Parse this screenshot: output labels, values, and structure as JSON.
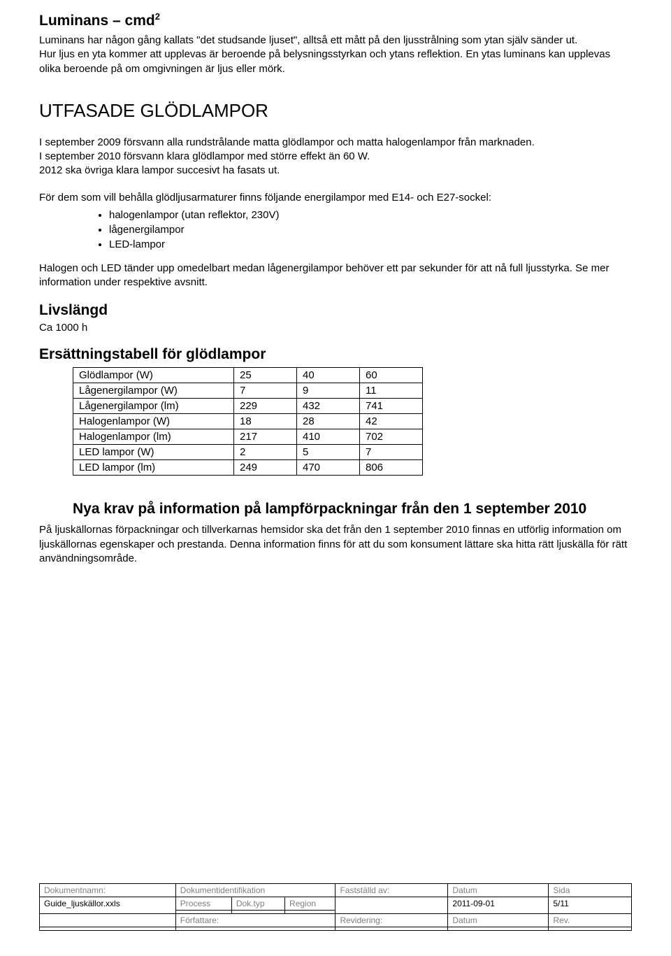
{
  "section_luminans": {
    "title_html": "Luminans – cmd",
    "title_sup": "2",
    "para": "Luminans har någon gång kallats \"det studsande ljuset\", alltså ett mått på den ljusstrålning som ytan själv sänder ut.\nHur ljus en yta kommer att upplevas är beroende på belysningsstyrkan och ytans reflektion. En ytas luminans kan upplevas olika beroende på om omgivningen är ljus eller mörk."
  },
  "section_utfasade": {
    "title": "UTFASADE GLÖDLAMPOR",
    "para1": "I september 2009 försvann alla rundstrålande matta glödlampor och matta halogenlampor från marknaden.\nI september 2010 försvann klara glödlampor med större effekt än 60 W.\n2012 ska övriga klara lampor succesivt ha fasats ut.",
    "para2_lead": "För dem som vill behålla glödljusarmaturer finns följande energilampor med E14- och E27-sockel:",
    "bullets": [
      "halogenlampor (utan reflektor, 230V)",
      "lågenergilampor",
      "LED-lampor"
    ],
    "para3": "Halogen och LED tänder upp omedelbart medan lågenergilampor behöver ett par sekunder för att nå full ljusstyrka. Se mer information under respektive avsnitt."
  },
  "livslangd": {
    "title": "Livslängd",
    "value": "Ca 1000 h"
  },
  "ersatt": {
    "title": "Ersättningstabell för glödlampor",
    "rows": [
      {
        "label": "Glödlampor (W)",
        "c1": "25",
        "c2": "40",
        "c3": "60"
      },
      {
        "label": "Lågenergilampor (W)",
        "c1": "7",
        "c2": "9",
        "c3": "11"
      },
      {
        "label": "Lågenergilampor (lm)",
        "c1": "229",
        "c2": "432",
        "c3": "741"
      },
      {
        "label": "Halogenlampor (W)",
        "c1": "18",
        "c2": "28",
        "c3": "42"
      },
      {
        "label": "Halogenlampor (lm)",
        "c1": "217",
        "c2": "410",
        "c3": "702"
      },
      {
        "label": "LED lampor (W)",
        "c1": "2",
        "c2": "5",
        "c3": "7"
      },
      {
        "label": "LED lampor (lm)",
        "c1": "249",
        "c2": "470",
        "c3": "806"
      }
    ]
  },
  "nya_krav": {
    "title": "Nya krav på information på lampförpackningar från den 1 september 2010",
    "para": "På ljuskällornas förpackningar och tillverkarnas hemsidor ska det från den 1 september 2010 finnas en utförlig information om ljuskällornas egenskaper och prestanda. Denna information finns för att du som konsument lättare ska hitta rätt ljuskälla för rätt användningsområde."
  },
  "footer": {
    "row1": {
      "c1_label": "Dokumentnamn:",
      "c2_label": "Dokumentidentifikation",
      "c3_label": "Fastställd av:",
      "c4_label": "Datum",
      "c5_label": "Sida"
    },
    "row2": {
      "c1_value": "Guide_ljuskällor.xxls",
      "c2_a": "Process",
      "c2_b": "Dok.typ",
      "c2_c": "Region",
      "c4_value": "2011-09-01",
      "c5_value": "5/11"
    },
    "row3": {
      "c2_label": "Författare:",
      "c3_label": "Revidering:",
      "c4_label": "Datum",
      "c5_label": "Rev."
    }
  }
}
